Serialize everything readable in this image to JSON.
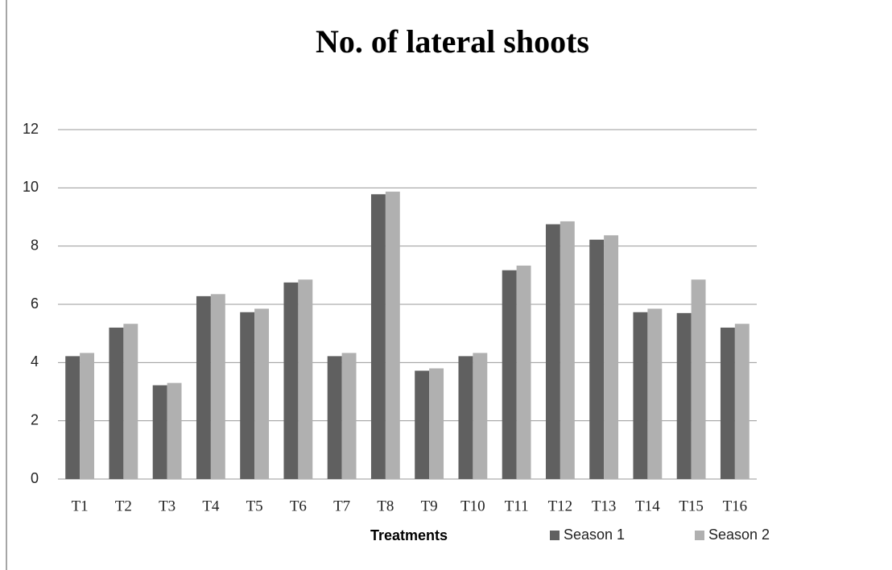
{
  "chart_data": {
    "type": "bar",
    "title": "No. of lateral shoots",
    "x_label": "Treatments",
    "categories": [
      "T1",
      "T2",
      "T3",
      "T4",
      "T5",
      "T6",
      "T7",
      "T8",
      "T9",
      "T10",
      "T11",
      "T12",
      "T13",
      "T14",
      "T15",
      "T16"
    ],
    "series": [
      {
        "name": "Season 1",
        "color": "#606060",
        "values": [
          4.22,
          5.2,
          3.22,
          6.28,
          5.73,
          6.75,
          4.22,
          9.78,
          3.72,
          4.22,
          7.17,
          8.75,
          8.22,
          5.73,
          5.7,
          5.2
        ]
      },
      {
        "name": "Season 2",
        "color": "#b0b0b0",
        "values": [
          4.33,
          5.33,
          3.3,
          6.35,
          5.85,
          6.85,
          4.33,
          9.87,
          3.8,
          4.33,
          7.33,
          8.85,
          8.37,
          5.85,
          6.85,
          5.33
        ]
      }
    ],
    "ylim": [
      0,
      12
    ],
    "yticks": [
      0,
      2,
      4,
      6,
      8,
      10,
      12
    ],
    "grid": true,
    "legend": "bottom"
  }
}
